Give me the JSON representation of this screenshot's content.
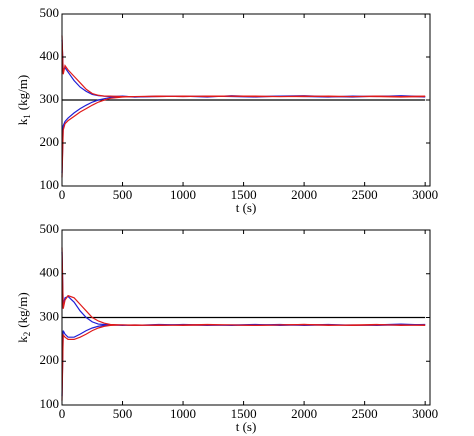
{
  "chart_data": [
    {
      "type": "line",
      "xlabel": "t (s)",
      "ylabel": [
        "k",
        "1",
        "(kg/m)"
      ],
      "xlim": [
        0,
        3040
      ],
      "ylim": [
        100,
        500
      ],
      "xticks": [
        0,
        500,
        1000,
        1500,
        2000,
        2500,
        3000
      ],
      "yticks": [
        100,
        200,
        300,
        400,
        500
      ],
      "x": [
        0,
        10,
        25,
        50,
        100,
        150,
        200,
        250,
        300,
        350,
        400,
        500,
        600,
        800,
        1000,
        1200,
        1400,
        1600,
        1800,
        2000,
        2200,
        2400,
        2600,
        2800,
        3000
      ],
      "series": [
        {
          "color": "#000000",
          "values": [
            300,
            300,
            300,
            300,
            300,
            300,
            300,
            300,
            300,
            300,
            300,
            300,
            300,
            300,
            300,
            300,
            300,
            300,
            300,
            300,
            300,
            300,
            300,
            300,
            300
          ]
        },
        {
          "color": "#1f1fd6",
          "values": [
            440,
            370,
            375,
            365,
            345,
            330,
            320,
            313,
            310,
            309,
            308,
            309,
            307,
            308,
            309,
            307,
            310,
            308,
            309,
            308,
            307,
            309,
            308,
            310,
            308
          ]
        },
        {
          "color": "#1f1fd6",
          "values": [
            130,
            240,
            250,
            258,
            270,
            280,
            288,
            295,
            300,
            303,
            306,
            308,
            307,
            309,
            308,
            309,
            308,
            307,
            309,
            310,
            308,
            307,
            309,
            309,
            307
          ]
        },
        {
          "color": "#e01a1a",
          "values": [
            450,
            360,
            380,
            370,
            355,
            340,
            325,
            315,
            311,
            309,
            309,
            308,
            308,
            309,
            308,
            309,
            309,
            308,
            308,
            309,
            308,
            308,
            309,
            308,
            309
          ]
        },
        {
          "color": "#e01a1a",
          "values": [
            120,
            230,
            245,
            252,
            262,
            272,
            280,
            288,
            295,
            300,
            304,
            307,
            308,
            308,
            309,
            308,
            309,
            309,
            308,
            308,
            309,
            308,
            308,
            307,
            308
          ]
        }
      ]
    },
    {
      "type": "line",
      "xlabel": "t (s)",
      "ylabel": [
        "k",
        "2",
        "(kg/m)"
      ],
      "xlim": [
        0,
        3040
      ],
      "ylim": [
        100,
        500
      ],
      "xticks": [
        0,
        500,
        1000,
        1500,
        2000,
        2500,
        3000
      ],
      "yticks": [
        100,
        200,
        300,
        400,
        500
      ],
      "x": [
        0,
        10,
        25,
        50,
        100,
        150,
        200,
        250,
        300,
        350,
        400,
        500,
        600,
        800,
        1000,
        1200,
        1400,
        1600,
        1800,
        2000,
        2200,
        2400,
        2600,
        2800,
        3000
      ],
      "series": [
        {
          "color": "#000000",
          "values": [
            300,
            300,
            300,
            300,
            300,
            300,
            300,
            300,
            300,
            300,
            300,
            300,
            300,
            300,
            300,
            300,
            300,
            300,
            300,
            300,
            300,
            300,
            300,
            300,
            300
          ]
        },
        {
          "color": "#1f1fd6",
          "values": [
            450,
            330,
            345,
            348,
            335,
            315,
            300,
            290,
            285,
            284,
            283,
            283,
            282,
            284,
            283,
            282,
            283,
            284,
            282,
            283,
            284,
            282,
            283,
            285,
            283
          ]
        },
        {
          "color": "#1f1fd6",
          "values": [
            120,
            270,
            262,
            255,
            255,
            262,
            270,
            276,
            280,
            282,
            283,
            282,
            283,
            282,
            284,
            283,
            282,
            283,
            284,
            282,
            283,
            283,
            282,
            283,
            284
          ]
        },
        {
          "color": "#e01a1a",
          "values": [
            460,
            320,
            340,
            350,
            345,
            330,
            315,
            300,
            292,
            287,
            284,
            283,
            283,
            282,
            283,
            284,
            283,
            282,
            283,
            284,
            282,
            283,
            284,
            282,
            283
          ]
        },
        {
          "color": "#e01a1a",
          "values": [
            110,
            260,
            255,
            250,
            250,
            255,
            262,
            270,
            276,
            280,
            282,
            283,
            282,
            283,
            282,
            283,
            283,
            282,
            283,
            284,
            283,
            282,
            283,
            283,
            282
          ]
        }
      ]
    }
  ]
}
